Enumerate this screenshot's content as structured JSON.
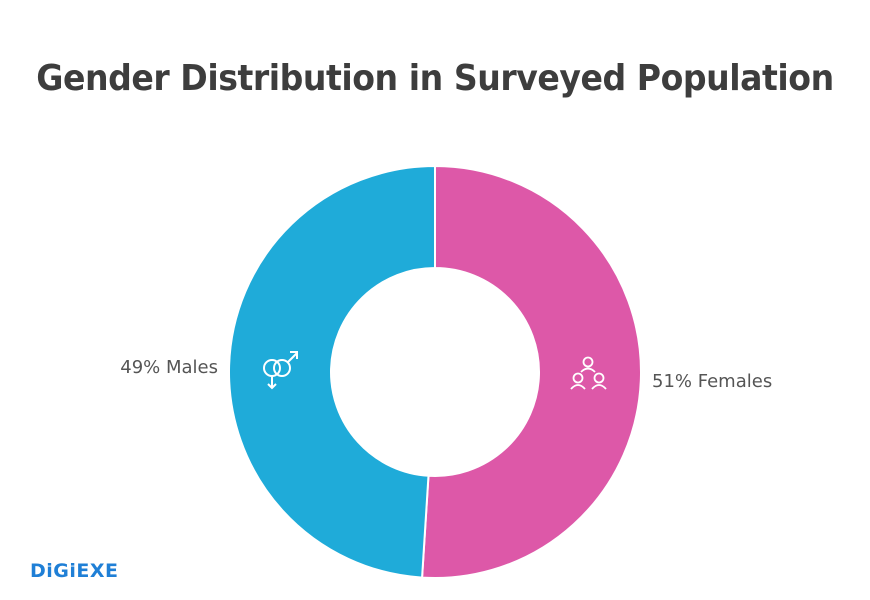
{
  "chart_data": {
    "type": "pie",
    "variant": "donut",
    "title": "Gender Distribution in Surveyed Population",
    "slices": [
      {
        "label": "51% Females",
        "name": "Females",
        "value": 51,
        "color": "#dd58a8",
        "icon": "women-group-icon"
      },
      {
        "label": "49% Males",
        "name": "Males",
        "value": 49,
        "color": "#1fabd9",
        "icon": "gender-symbol-icon"
      }
    ],
    "start_angle": "top",
    "direction": "clockwise"
  },
  "logo": {
    "text": "DiGiEXE",
    "color": "#1f7fd6"
  }
}
